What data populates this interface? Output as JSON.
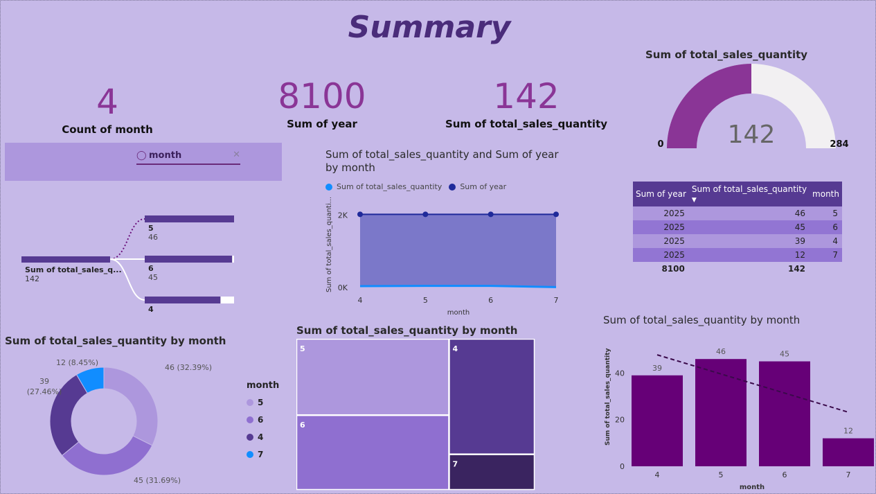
{
  "page": {
    "title": "Summary"
  },
  "kpis": [
    {
      "value": "4",
      "label": "Count of month"
    },
    {
      "value": "8100",
      "label": "Sum of year"
    },
    {
      "value": "142",
      "label": "Sum of total_sales_quantity"
    }
  ],
  "slicer": {
    "label": "month",
    "icon": "lightbulb-icon",
    "clear_icon": "close-icon"
  },
  "colors": {
    "m5": "#ad97dd",
    "m6": "#8f6fd0",
    "m4": "#563a92",
    "m7": "#118dff",
    "bar": "#660077",
    "gauge": "#8a3596"
  },
  "chart_data": [
    {
      "id": "gauge",
      "type": "gauge",
      "title": "Sum of total_sales_quantity",
      "value": 142,
      "min": 0,
      "max": 284,
      "value_label": "142",
      "min_label": "0",
      "max_label": "284"
    },
    {
      "id": "decomposition",
      "type": "bar",
      "root": {
        "label": "Sum of total_sales_q...",
        "value": "142"
      },
      "nodes": [
        {
          "label": "5",
          "value": "46",
          "v": 46
        },
        {
          "label": "6",
          "value": "45",
          "v": 45
        },
        {
          "label": "4",
          "value": "",
          "v": 39
        }
      ],
      "max": 46
    },
    {
      "id": "area",
      "type": "area",
      "title": "Sum of total_sales_quantity and Sum of year by month",
      "title_lines": [
        "Sum of total_sales_quantity and Sum of year",
        "by month"
      ],
      "xlabel": "month",
      "ylabel": "Sum of total_sales_quanti...",
      "x": [
        4,
        5,
        6,
        7
      ],
      "yticks": [
        "0K",
        "2K"
      ],
      "ylim": [
        0,
        2300
      ],
      "series": [
        {
          "name": "Sum of total_sales_quantity",
          "values": [
            39,
            46,
            45,
            12
          ],
          "color": "#118dff"
        },
        {
          "name": "Sum of year",
          "values": [
            2025,
            2025,
            2025,
            2025
          ],
          "color": "#1f2a9a"
        }
      ]
    },
    {
      "id": "donut",
      "type": "pie",
      "title": "Sum of total_sales_quantity by month",
      "legend_title": "month",
      "slices": [
        {
          "label": "5",
          "value": 46,
          "pct": "46 (32.39%)"
        },
        {
          "label": "6",
          "value": 45,
          "pct": "45 (31.69%)"
        },
        {
          "label": "4",
          "value": 39,
          "pct": "39 (27.46%)"
        },
        {
          "label": "7",
          "value": 12,
          "pct": "12 (8.45%)"
        }
      ]
    },
    {
      "id": "treemap",
      "type": "heatmap",
      "title": "Sum of total_sales_quantity by month",
      "cells": [
        {
          "label": "5",
          "value": 46
        },
        {
          "label": "6",
          "value": 45
        },
        {
          "label": "4",
          "value": 39
        },
        {
          "label": "7",
          "value": 12
        }
      ]
    },
    {
      "id": "column",
      "type": "bar",
      "title": "Sum of total_sales_quantity by month",
      "xlabel": "month",
      "ylabel": "Sum of total_sales_quantity",
      "categories": [
        "4",
        "5",
        "6",
        "7"
      ],
      "values": [
        39,
        46,
        45,
        12
      ],
      "yticks": [
        0,
        20,
        40
      ],
      "ylim": [
        0,
        52
      ],
      "trendline": true
    }
  ],
  "table": {
    "headers": [
      "Sum of year",
      "Sum of total_sales_quantity",
      "month"
    ],
    "sort_icon": "sort-down-icon",
    "rows": [
      [
        "2025",
        "46",
        "5"
      ],
      [
        "2025",
        "45",
        "6"
      ],
      [
        "2025",
        "39",
        "4"
      ],
      [
        "2025",
        "12",
        "7"
      ]
    ],
    "totals": [
      "8100",
      "142",
      ""
    ]
  }
}
